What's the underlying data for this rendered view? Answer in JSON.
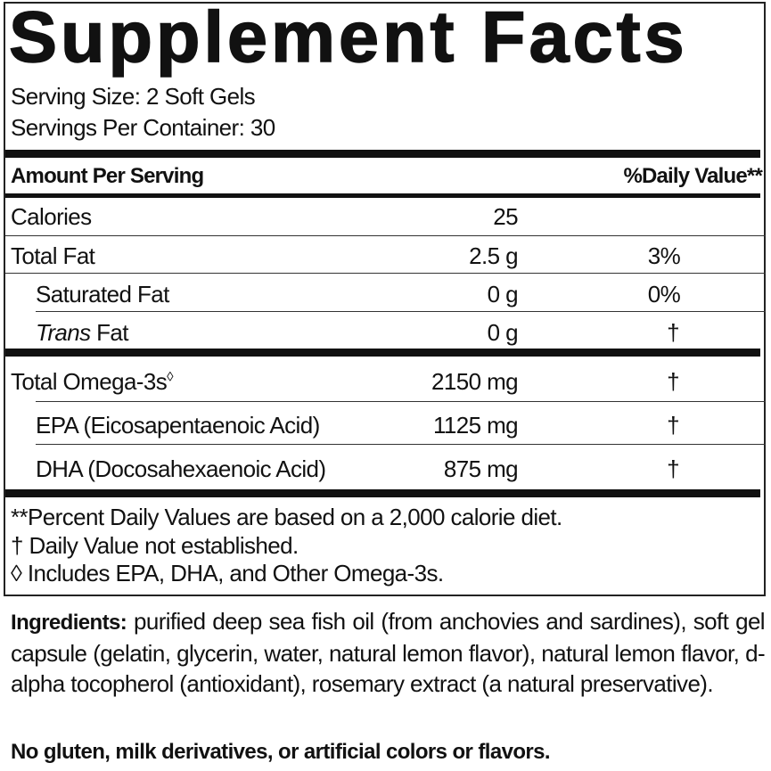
{
  "title": "Supplement Facts",
  "serving_size": "Serving Size: 2 Soft Gels",
  "servings_per_container": "Servings Per Container: 30",
  "header": {
    "amount": "Amount Per Serving",
    "dv": "%Daily Value**"
  },
  "rows": [
    {
      "name": "Calories",
      "amount": "25",
      "dv": ""
    },
    {
      "name": "Total Fat",
      "amount": "2.5 g",
      "dv": "3%"
    },
    {
      "name": "Saturated Fat",
      "amount": "0 g",
      "dv": "0%"
    },
    {
      "name_italic": "Trans",
      "name": " Fat",
      "amount": "0 g",
      "dv": "†"
    },
    {
      "name": "Total Omega-3s",
      "sup": "◊",
      "amount": "2150 mg",
      "dv": "†"
    },
    {
      "name": "EPA (Eicosapentaenoic Acid)",
      "amount": "1125 mg",
      "dv": "†"
    },
    {
      "name": "DHA (Docosahexaenoic Acid)",
      "amount": "875 mg",
      "dv": "†"
    }
  ],
  "footnotes": [
    "**Percent Daily Values are based on a 2,000 calorie diet.",
    "† Daily Value not established.",
    "◊ Includes EPA, DHA, and Other Omega-3s."
  ],
  "ingredients": {
    "label": "Ingredients:",
    "text": " purified deep sea fish oil (from anchovies and sardines), soft gel capsule (gelatin, glycerin, water, natural lemon flavor), natural lemon flavor, d-alpha tocopherol (antioxidant), rosemary extract (a natural preservative)."
  },
  "free_from": "No gluten, milk derivatives, or artificial colors or flavors."
}
